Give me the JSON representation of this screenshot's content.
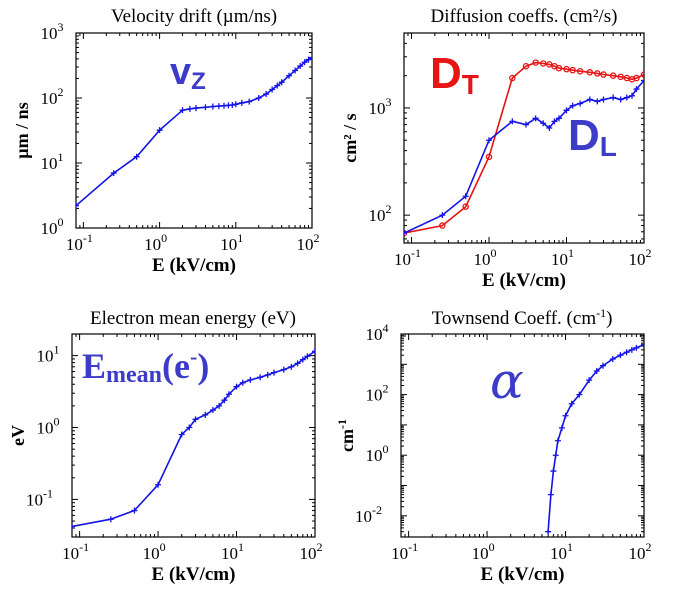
{
  "chart_data": [
    {
      "id": "vdrift",
      "type": "line",
      "title": "Velocity drift (µm/ns)",
      "xlabel": "E (kV/cm)",
      "ylabel": "µm / ns",
      "xscale": "log",
      "yscale": "log",
      "xlim": [
        0.08,
        100
      ],
      "ylim": [
        1,
        1000
      ],
      "xticks": [
        {
          "base": "10",
          "exp": "-1"
        },
        {
          "base": "10",
          "exp": "0"
        },
        {
          "base": "10",
          "exp": "1"
        },
        {
          "base": "10",
          "exp": "2"
        }
      ],
      "yticks": [
        {
          "base": "10",
          "exp": "0"
        },
        {
          "base": "10",
          "exp": "1"
        },
        {
          "base": "10",
          "exp": "2"
        },
        {
          "base": "10",
          "exp": "3"
        }
      ],
      "annotations": [
        {
          "text_main": "v",
          "text_sub": "Z",
          "color": "#3c3cc8"
        }
      ],
      "series": [
        {
          "color": "#1414e6",
          "marker": "plus",
          "x": [
            0.08,
            0.25,
            0.5,
            1.0,
            2.0,
            2.5,
            3,
            4,
            5,
            6,
            7,
            8,
            9,
            10,
            12,
            15,
            20,
            25,
            30,
            35,
            40,
            50,
            60,
            70,
            80,
            90,
            100
          ],
          "y": [
            2.2,
            7,
            12.5,
            32,
            65,
            68,
            70,
            72,
            74,
            75,
            76,
            77,
            78,
            80,
            84,
            88,
            100,
            115,
            135,
            155,
            175,
            220,
            265,
            310,
            355,
            390,
            420
          ]
        }
      ]
    },
    {
      "id": "diffusion",
      "type": "line",
      "title": "Diffusion coeffs. (cm²/s)",
      "xlabel": "E (kV/cm)",
      "ylabel": "cm² / s",
      "xscale": "log",
      "yscale": "log",
      "xlim": [
        0.08,
        100
      ],
      "ylim": [
        55,
        5000
      ],
      "xticks": [
        {
          "base": "10",
          "exp": "-1"
        },
        {
          "base": "10",
          "exp": "0"
        },
        {
          "base": "10",
          "exp": "1"
        },
        {
          "base": "10",
          "exp": "2"
        }
      ],
      "yticks": [
        {
          "base": "10",
          "exp": "2"
        },
        {
          "base": "10",
          "exp": "3"
        }
      ],
      "annotations": [
        {
          "text_main": "D",
          "text_sub": "T",
          "color": "#e61414"
        },
        {
          "text_main": "D",
          "text_sub": "L",
          "color": "#3c3cc8"
        }
      ],
      "series": [
        {
          "name": "",
          "color": "#e61414",
          "marker": "circle",
          "x": [
            0.08,
            0.25,
            0.5,
            1.0,
            2.0,
            3.0,
            4.0,
            5,
            6,
            7,
            8,
            10,
            12,
            15,
            20,
            25,
            30,
            40,
            50,
            60,
            70,
            80,
            100
          ],
          "y": [
            68,
            80,
            120,
            350,
            1900,
            2450,
            2650,
            2600,
            2550,
            2450,
            2350,
            2300,
            2250,
            2200,
            2150,
            2100,
            2050,
            2000,
            1950,
            1900,
            1850,
            1900,
            2050
          ]
        },
        {
          "name": "",
          "color": "#1414e6",
          "marker": "plus",
          "x": [
            0.08,
            0.25,
            0.5,
            1.0,
            2.0,
            3.0,
            4.0,
            5,
            6,
            7,
            8,
            10,
            12,
            15,
            20,
            25,
            30,
            40,
            50,
            60,
            70,
            80,
            100
          ],
          "y": [
            68,
            100,
            150,
            500,
            750,
            700,
            800,
            720,
            650,
            750,
            800,
            950,
            1050,
            1100,
            1200,
            1150,
            1200,
            1250,
            1200,
            1250,
            1300,
            1500,
            1800
          ]
        }
      ]
    },
    {
      "id": "meanenergy",
      "type": "line",
      "title": "Electron mean energy (eV)",
      "xlabel": "E (kV/cm)",
      "ylabel": "eV",
      "xscale": "log",
      "yscale": "log",
      "xlim": [
        0.08,
        100
      ],
      "ylim": [
        0.03,
        20
      ],
      "xticks": [
        {
          "base": "10",
          "exp": "-1"
        },
        {
          "base": "10",
          "exp": "0"
        },
        {
          "base": "10",
          "exp": "1"
        },
        {
          "base": "10",
          "exp": "2"
        }
      ],
      "yticks": [
        {
          "base": "10",
          "exp": "-1"
        },
        {
          "base": "10",
          "exp": "0"
        },
        {
          "base": "10",
          "exp": "1"
        }
      ],
      "annotations": [
        {
          "text_main": "E",
          "text_sub": "mean",
          "text_tail": "(e",
          "text_sup": "-",
          "text_close": ")",
          "color": "#3c3cc8"
        }
      ],
      "series": [
        {
          "color": "#1414e6",
          "marker": "plus",
          "x": [
            0.08,
            0.25,
            0.5,
            1.0,
            2.0,
            2.5,
            3,
            4,
            5,
            6,
            7,
            8,
            10,
            12,
            15,
            20,
            25,
            30,
            40,
            50,
            60,
            70,
            80,
            100
          ],
          "y": [
            0.042,
            0.053,
            0.07,
            0.16,
            0.8,
            1.0,
            1.3,
            1.5,
            1.75,
            2.0,
            2.4,
            2.9,
            3.7,
            4.2,
            4.6,
            5.0,
            5.4,
            5.8,
            6.4,
            7.0,
            7.8,
            8.8,
            9.8,
            11.5
          ]
        }
      ]
    },
    {
      "id": "townsend",
      "type": "line",
      "title": "Townsend Coeff. (cm",
      "title_sup": "-1",
      "title_close": ")",
      "xlabel": "E (kV/cm)",
      "ylabel": "cm",
      "ylabel_sup": "-1",
      "xscale": "log",
      "yscale": "log",
      "xlim": [
        0.08,
        100
      ],
      "ylim": [
        0.002,
        10000
      ],
      "xticks": [
        {
          "base": "10",
          "exp": "-1"
        },
        {
          "base": "10",
          "exp": "0"
        },
        {
          "base": "10",
          "exp": "1"
        },
        {
          "base": "10",
          "exp": "2"
        }
      ],
      "yticks": [
        {
          "base": "10",
          "exp": "-2"
        },
        {
          "base": "10",
          "exp": "0"
        },
        {
          "base": "10",
          "exp": "2"
        },
        {
          "base": "10",
          "exp": "4"
        }
      ],
      "annotations": [
        {
          "text_main": "α",
          "color": "#3c3cc8"
        }
      ],
      "series": [
        {
          "color": "#1414e6",
          "marker": "plus",
          "x": [
            6,
            6.5,
            7,
            7.5,
            8,
            9,
            10,
            12,
            15,
            20,
            25,
            30,
            40,
            50,
            60,
            70,
            80,
            100
          ],
          "y": [
            0.003,
            0.05,
            0.3,
            1.0,
            3.0,
            8,
            20,
            50,
            100,
            300,
            600,
            900,
            1500,
            2000,
            2500,
            3000,
            3500,
            4500
          ]
        }
      ]
    }
  ]
}
